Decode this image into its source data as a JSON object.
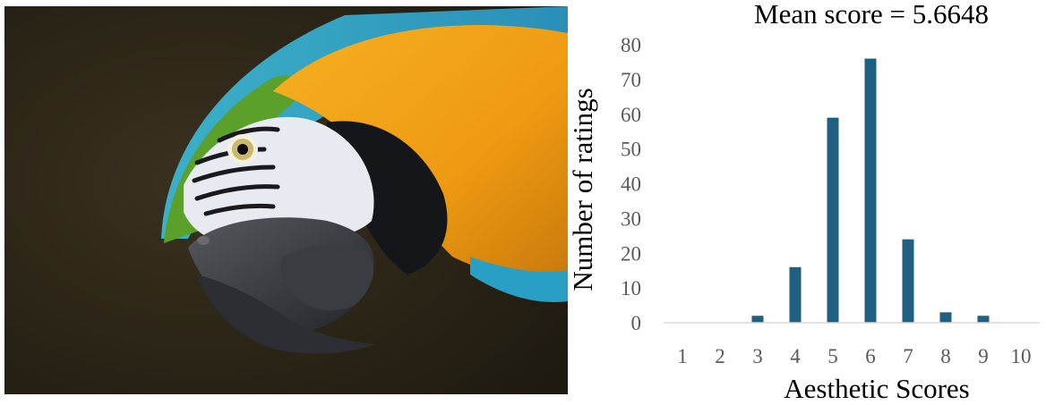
{
  "photo": {
    "subject_colors": {
      "background": "#2a2316",
      "feather_orange": "#f2a51a",
      "feather_blue": "#2a9fc4",
      "feather_green": "#5aa02a",
      "face_white": "#e8eaf2",
      "beak": "#3b3d42"
    }
  },
  "chart_data": {
    "type": "bar",
    "title": "Mean score = 5.6648",
    "xlabel": "Aesthetic Scores",
    "ylabel": "Number of ratings",
    "categories": [
      "1",
      "2",
      "3",
      "4",
      "5",
      "6",
      "7",
      "8",
      "9",
      "10"
    ],
    "values": [
      0,
      0,
      2,
      16,
      59,
      76,
      24,
      3,
      2,
      0
    ],
    "yticks": [
      "0",
      "10",
      "20",
      "30",
      "40",
      "50",
      "60",
      "70",
      "80"
    ],
    "ylim": [
      0,
      80
    ],
    "grid": false,
    "legend": "none",
    "bar_color": "#1f5f80",
    "axis_color": "#d9d9d9"
  }
}
